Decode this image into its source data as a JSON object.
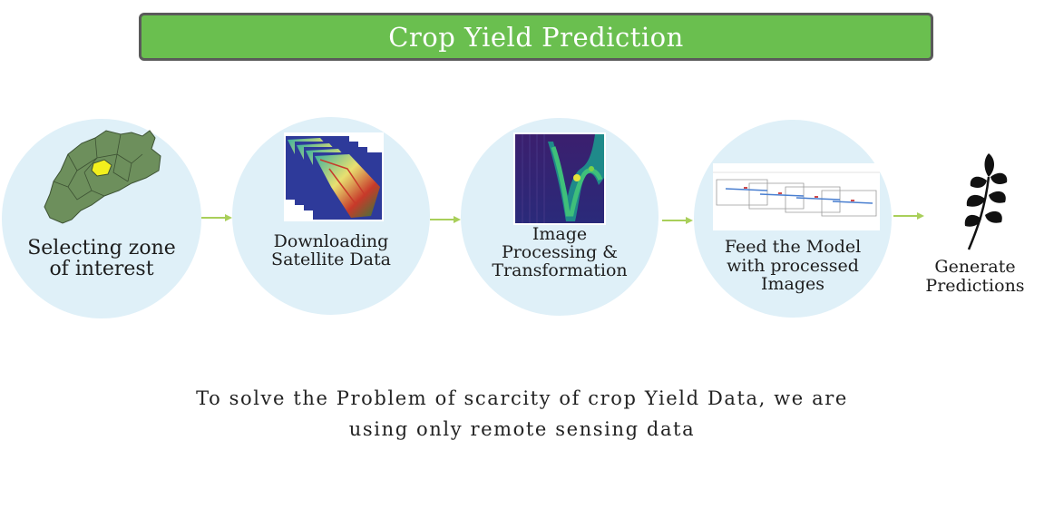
{
  "title": "Crop Yield Prediction",
  "steps": [
    {
      "label_line1": "Selecting zone",
      "label_line2": "of interest",
      "icon": "map-region-icon"
    },
    {
      "label_line1": "Downloading",
      "label_line2": "Satellite Data",
      "icon": "satellite-images-icon"
    },
    {
      "label_line1": "Image",
      "label_line2": "Processing &",
      "label_line3": "Transformation",
      "icon": "histogram-heatmap-icon"
    },
    {
      "label_line1": "Feed the Model",
      "label_line2": "with processed",
      "label_line3": "Images",
      "icon": "model-diagram-icon"
    },
    {
      "label_line1": "Generate",
      "label_line2": "Predictions",
      "icon": "wheat-icon"
    }
  ],
  "caption_line1": "To solve the Problem of scarcity of crop Yield Data, we are",
  "caption_line2": "using only remote sensing data",
  "colors": {
    "title_bg": "#6abf4f",
    "circle": "#dff0f8",
    "arrow": "#a9cf5a"
  }
}
